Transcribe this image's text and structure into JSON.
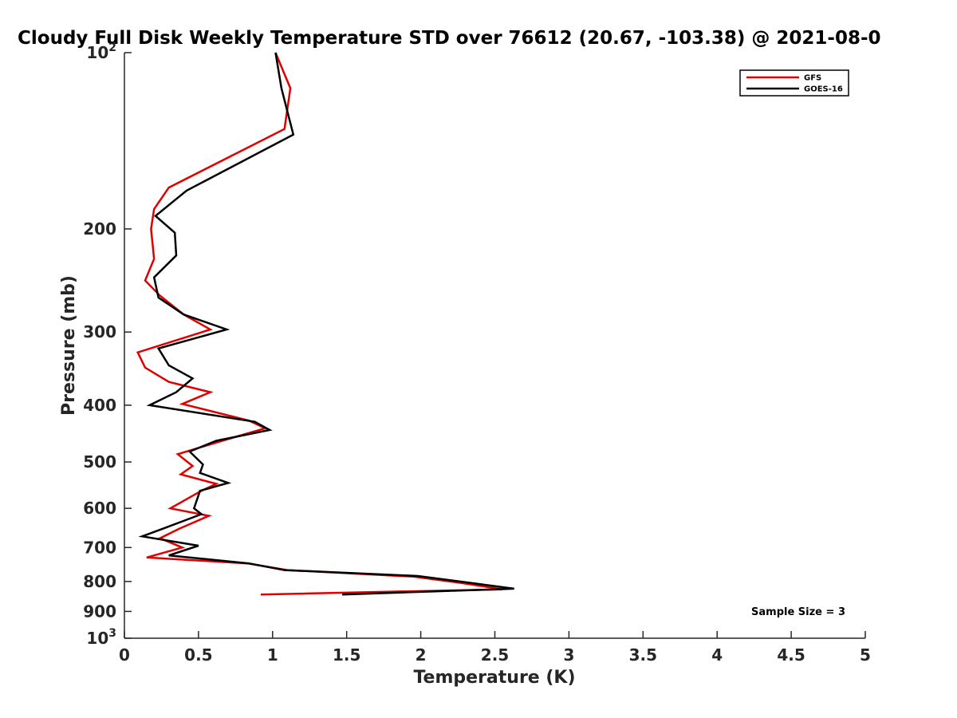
{
  "chart_data": {
    "type": "line",
    "title": "Cloudy Full Disk Weekly Temperature STD over 76612 (20.67, -103.38) @ 2021-08-0",
    "xlabel": "Temperature (K)",
    "ylabel": "Pressure (mb)",
    "xlim": [
      0,
      5
    ],
    "ylim": [
      100,
      1000
    ],
    "y_scale": "log",
    "y_reversed": true,
    "grid": false,
    "legend_position": "top-right",
    "x_ticks": [
      "0",
      "0.5",
      "1",
      "1.5",
      "2",
      "2.5",
      "3",
      "3.5",
      "4",
      "4.5",
      "5"
    ],
    "y_ticks": [
      {
        "value": 100,
        "base": "10",
        "exp": "2"
      },
      {
        "value": 200,
        "label": "200"
      },
      {
        "value": 300,
        "label": "300"
      },
      {
        "value": 400,
        "label": "400"
      },
      {
        "value": 500,
        "label": "500"
      },
      {
        "value": 600,
        "label": "600"
      },
      {
        "value": 700,
        "label": "700"
      },
      {
        "value": 800,
        "label": "800"
      },
      {
        "value": 900,
        "label": "900"
      },
      {
        "value": 1000,
        "base": "10",
        "exp": "3"
      }
    ],
    "annotation": "Sample Size = 3",
    "series": [
      {
        "name": "GFS",
        "color": "#e00000",
        "points": [
          [
            1.02,
            100
          ],
          [
            1.12,
            115
          ],
          [
            1.08,
            135
          ],
          [
            0.3,
            170
          ],
          [
            0.2,
            185
          ],
          [
            0.18,
            200
          ],
          [
            0.2,
            225
          ],
          [
            0.14,
            245
          ],
          [
            0.24,
            260
          ],
          [
            0.4,
            280
          ],
          [
            0.58,
            297
          ],
          [
            0.09,
            325
          ],
          [
            0.14,
            345
          ],
          [
            0.3,
            365
          ],
          [
            0.58,
            380
          ],
          [
            0.39,
            398
          ],
          [
            0.84,
            425
          ],
          [
            0.95,
            438
          ],
          [
            0.66,
            460
          ],
          [
            0.36,
            485
          ],
          [
            0.46,
            508
          ],
          [
            0.38,
            525
          ],
          [
            0.62,
            545
          ],
          [
            0.52,
            560
          ],
          [
            0.31,
            600
          ],
          [
            0.57,
            618
          ],
          [
            0.37,
            650
          ],
          [
            0.24,
            675
          ],
          [
            0.39,
            700
          ],
          [
            0.15,
            728
          ],
          [
            0.83,
            745
          ],
          [
            1.1,
            765
          ],
          [
            1.95,
            785
          ],
          [
            2.28,
            805
          ],
          [
            2.55,
            825
          ],
          [
            0.92,
            842
          ]
        ]
      },
      {
        "name": "GOES-16",
        "color": "#000000",
        "points": [
          [
            1.02,
            100
          ],
          [
            1.06,
            115
          ],
          [
            1.14,
            138
          ],
          [
            0.42,
            172
          ],
          [
            0.21,
            190
          ],
          [
            0.34,
            203
          ],
          [
            0.35,
            222
          ],
          [
            0.2,
            242
          ],
          [
            0.23,
            262
          ],
          [
            0.4,
            280
          ],
          [
            0.69,
            297
          ],
          [
            0.23,
            320
          ],
          [
            0.3,
            342
          ],
          [
            0.46,
            360
          ],
          [
            0.35,
            380
          ],
          [
            0.17,
            400
          ],
          [
            0.88,
            427
          ],
          [
            0.98,
            441
          ],
          [
            0.62,
            460
          ],
          [
            0.44,
            480
          ],
          [
            0.53,
            505
          ],
          [
            0.51,
            522
          ],
          [
            0.7,
            543
          ],
          [
            0.51,
            560
          ],
          [
            0.47,
            600
          ],
          [
            0.52,
            614
          ],
          [
            0.26,
            650
          ],
          [
            0.12,
            670
          ],
          [
            0.5,
            695
          ],
          [
            0.3,
            722
          ],
          [
            0.84,
            745
          ],
          [
            1.08,
            765
          ],
          [
            1.98,
            783
          ],
          [
            2.3,
            802
          ],
          [
            2.63,
            823
          ],
          [
            1.47,
            842
          ]
        ]
      }
    ]
  }
}
